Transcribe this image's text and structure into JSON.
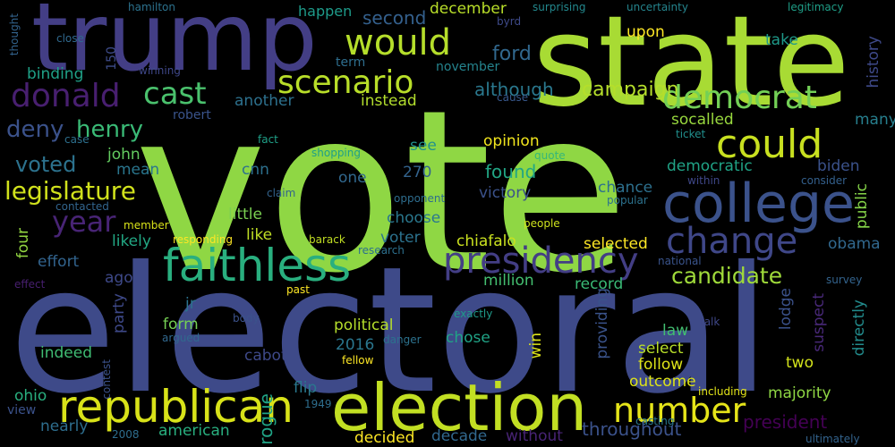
{
  "palette": {
    "background": "#000000",
    "lime": "#9bd93c",
    "yellow": "#d8e219",
    "blue": "#3e4a89",
    "slate": "#31688e",
    "teal": "#21908d",
    "green": "#35b779",
    "purple": "#472c7a",
    "indigo": "#443a83",
    "dark": "#440154",
    "pale": "#c2df23"
  },
  "words": [
    {
      "text": "vote",
      "color": "#8fd744"
    },
    {
      "text": "electoral",
      "color": "#3e4a89"
    },
    {
      "text": "state",
      "color": "#a8db34"
    },
    {
      "text": "trump",
      "color": "#433e85"
    },
    {
      "text": "college",
      "color": "#3b528b"
    },
    {
      "text": "election",
      "color": "#c2df23"
    },
    {
      "text": "faithless",
      "color": "#29af7f"
    },
    {
      "text": "republican",
      "color": "#d8e219"
    },
    {
      "text": "would",
      "color": "#b5de2b"
    },
    {
      "text": "could",
      "color": "#c8e020"
    },
    {
      "text": "democrat",
      "color": "#73d056"
    },
    {
      "text": "donald",
      "color": "#481f70"
    },
    {
      "text": "scenario",
      "color": "#b8de29"
    },
    {
      "text": "presidency",
      "color": "#433e85"
    },
    {
      "text": "change",
      "color": "#3f4788"
    },
    {
      "text": "cast",
      "color": "#4ac16d"
    },
    {
      "text": "number",
      "color": "#e5e419"
    },
    {
      "text": "year",
      "color": "#482475"
    },
    {
      "text": "legislature",
      "color": "#d0e11c"
    },
    {
      "text": "candidate",
      "color": "#9fda3a"
    },
    {
      "text": "henry",
      "color": "#3aba76"
    },
    {
      "text": "deny",
      "color": "#3b528b"
    },
    {
      "text": "voted",
      "color": "#2c728e"
    },
    {
      "text": "campaign",
      "color": "#b5de2b"
    },
    {
      "text": "although",
      "color": "#2a788e"
    },
    {
      "text": "ford",
      "color": "#31688e"
    },
    {
      "text": "second",
      "color": "#34608d"
    },
    {
      "text": "december",
      "color": "#b8de29"
    },
    {
      "text": "upon",
      "color": "#fde725"
    },
    {
      "text": "take",
      "color": "#1f9a8a"
    },
    {
      "text": "history",
      "color": "#3e4989"
    },
    {
      "text": "legitimacy",
      "color": "#1f9f88"
    },
    {
      "text": "uncertainty",
      "color": "#25858e"
    },
    {
      "text": "surprising",
      "color": "#23898e"
    },
    {
      "text": "happen",
      "color": "#1e9b8a"
    },
    {
      "text": "hamilton",
      "color": "#2c728e"
    },
    {
      "text": "close",
      "color": "#30698e"
    },
    {
      "text": "thought",
      "color": "#33638d"
    },
    {
      "text": "binding",
      "color": "#1fa187"
    },
    {
      "text": "150",
      "color": "#3e4c8a"
    },
    {
      "text": "winning",
      "color": "#3f4889"
    },
    {
      "text": "term",
      "color": "#2e6e8e"
    },
    {
      "text": "november",
      "color": "#25848e"
    },
    {
      "text": "instead",
      "color": "#b2dd2d"
    },
    {
      "text": "another",
      "color": "#2d718e"
    },
    {
      "text": "robert",
      "color": "#3a548c"
    },
    {
      "text": "cause",
      "color": "#38588c"
    },
    {
      "text": "byrd",
      "color": "#3e4a89"
    },
    {
      "text": "socalled",
      "color": "#98d83e"
    },
    {
      "text": "many",
      "color": "#277f8e"
    },
    {
      "text": "ticket",
      "color": "#218f8d"
    },
    {
      "text": "john",
      "color": "#63cb5f"
    },
    {
      "text": "fact",
      "color": "#1fa088"
    },
    {
      "text": "case",
      "color": "#2d708e"
    },
    {
      "text": "mean",
      "color": "#2a768e"
    },
    {
      "text": "see",
      "color": "#21918c"
    },
    {
      "text": "opinion",
      "color": "#f1e51d"
    },
    {
      "text": "democratic",
      "color": "#20a386"
    },
    {
      "text": "biden",
      "color": "#3b528b"
    },
    {
      "text": "quote",
      "color": "#35b779"
    },
    {
      "text": "shopping",
      "color": "#1fa088"
    },
    {
      "text": "one",
      "color": "#31688e"
    },
    {
      "text": "270",
      "color": "#33638d"
    },
    {
      "text": "found",
      "color": "#21a685"
    },
    {
      "text": "cnn",
      "color": "#2d708e"
    },
    {
      "text": "claim",
      "color": "#33638d"
    },
    {
      "text": "consider",
      "color": "#34608d"
    },
    {
      "text": "public",
      "color": "#86d549"
    },
    {
      "text": "within",
      "color": "#3f4788"
    },
    {
      "text": "victory",
      "color": "#3b528b"
    },
    {
      "text": "chance",
      "color": "#2d708e"
    },
    {
      "text": "opponent",
      "color": "#2e6d8e"
    },
    {
      "text": "contacted",
      "color": "#32658e"
    },
    {
      "text": "member",
      "color": "#d8e219"
    },
    {
      "text": "little",
      "color": "#7ad151"
    },
    {
      "text": "choose",
      "color": "#2a788e"
    },
    {
      "text": "popular",
      "color": "#2c728e"
    },
    {
      "text": "people",
      "color": "#cde11d"
    },
    {
      "text": "like",
      "color": "#c0df25"
    },
    {
      "text": "voter",
      "color": "#2c728e"
    },
    {
      "text": "chiafalo",
      "color": "#cae11f"
    },
    {
      "text": "selected",
      "color": "#fde725"
    },
    {
      "text": "obama",
      "color": "#31688e"
    },
    {
      "text": "likely",
      "color": "#22a884"
    },
    {
      "text": "responding",
      "color": "#fde725"
    },
    {
      "text": "barack",
      "color": "#c2df23"
    },
    {
      "text": "research",
      "color": "#2d708e"
    },
    {
      "text": "four",
      "color": "#93d741"
    },
    {
      "text": "effort",
      "color": "#32648e"
    },
    {
      "text": "ago",
      "color": "#3e4989"
    },
    {
      "text": "effect",
      "color": "#481f70"
    },
    {
      "text": "million",
      "color": "#44bf70"
    },
    {
      "text": "record",
      "color": "#3aba76"
    },
    {
      "text": "national",
      "color": "#3a548c"
    },
    {
      "text": "survey",
      "color": "#33638d"
    },
    {
      "text": "past",
      "color": "#fde725"
    },
    {
      "text": "jr",
      "color": "#2c728e"
    },
    {
      "text": "lodge",
      "color": "#3b528b"
    },
    {
      "text": "suspect",
      "color": "#482878"
    },
    {
      "text": "directly",
      "color": "#228c8d"
    },
    {
      "text": "party",
      "color": "#3e4989"
    },
    {
      "text": "form",
      "color": "#75d054"
    },
    {
      "text": "body",
      "color": "#3b528b"
    },
    {
      "text": "political",
      "color": "#b5de2b"
    },
    {
      "text": "exactly",
      "color": "#1f9a8a"
    },
    {
      "text": "providing",
      "color": "#3a538b"
    },
    {
      "text": "law",
      "color": "#42be71"
    },
    {
      "text": "select",
      "color": "#b8de29"
    },
    {
      "text": "talk",
      "color": "#3f4788"
    },
    {
      "text": "argued",
      "color": "#31688e"
    },
    {
      "text": "danger",
      "color": "#2c728e"
    },
    {
      "text": "2016",
      "color": "#2a768e"
    },
    {
      "text": "chose",
      "color": "#20a386"
    },
    {
      "text": "win",
      "color": "#dde318"
    },
    {
      "text": "follow",
      "color": "#dde318"
    },
    {
      "text": "indeed",
      "color": "#3fbc73"
    },
    {
      "text": "cabot",
      "color": "#3e4989"
    },
    {
      "text": "contest",
      "color": "#3b528b"
    },
    {
      "text": "fellow",
      "color": "#fde725"
    },
    {
      "text": "two",
      "color": "#d2e21b"
    },
    {
      "text": "outcome",
      "color": "#dde318"
    },
    {
      "text": "ohio",
      "color": "#29af7f"
    },
    {
      "text": "majority",
      "color": "#8fd744"
    },
    {
      "text": "including",
      "color": "#e2e418"
    },
    {
      "text": "casting",
      "color": "#2a788e"
    },
    {
      "text": "flip",
      "color": "#2a788e"
    },
    {
      "text": "view",
      "color": "#3b528b"
    },
    {
      "text": "rogue",
      "color": "#20a486"
    },
    {
      "text": "1949",
      "color": "#2e6e8e"
    },
    {
      "text": "president",
      "color": "#440154"
    },
    {
      "text": "nearly",
      "color": "#2e6e8e"
    },
    {
      "text": "american",
      "color": "#29af7f"
    },
    {
      "text": "throughout",
      "color": "#3b528b"
    },
    {
      "text": "2008",
      "color": "#2e6e8e"
    },
    {
      "text": "decided",
      "color": "#fde725"
    },
    {
      "text": "decade",
      "color": "#31688e"
    },
    {
      "text": "without",
      "color": "#482475"
    },
    {
      "text": "ultimately",
      "color": "#33638d"
    }
  ]
}
